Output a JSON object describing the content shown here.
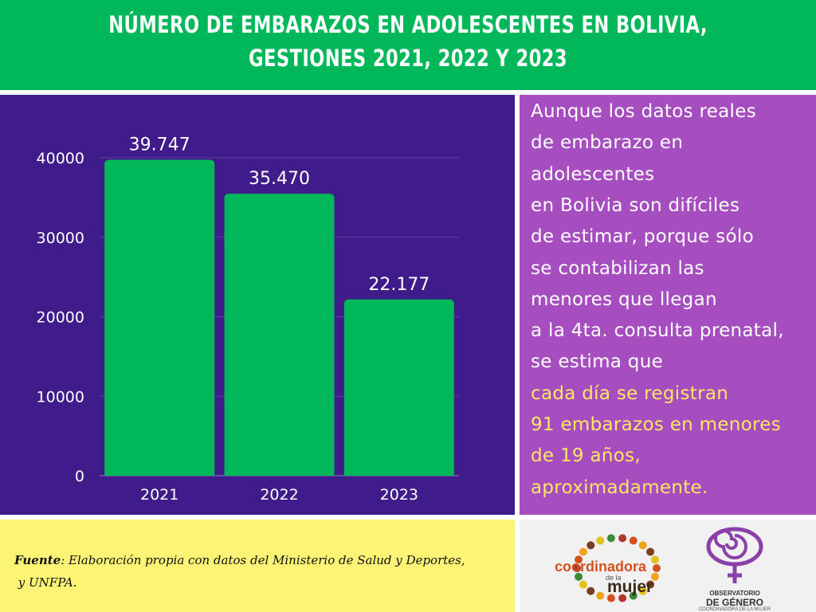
{
  "header": {
    "title_line1": "NÚMERO DE EMBARAZOS EN ADOLESCENTES EN BOLIVIA,",
    "title_line2": "GESTIONES 2021, 2022 Y 2023"
  },
  "chart_data": {
    "type": "bar",
    "categories": [
      "2021",
      "2022",
      "2023"
    ],
    "values": [
      39747,
      35470,
      22177
    ],
    "data_labels": [
      "39.747",
      "35.470",
      "22.177"
    ],
    "yticks": [
      0,
      10000,
      20000,
      30000,
      40000
    ],
    "ylim": [
      0,
      44000
    ],
    "grid": true,
    "bar_color": "#00b85a"
  },
  "note": {
    "lines": [
      "Aunque los datos reales",
      "de embarazo en",
      "adolescentes",
      "en Bolivia son difíciles",
      "de estimar, porque sólo",
      "se contabilizan las",
      "menores que llegan",
      "a la 4ta. consulta prenatal,",
      "se estima que"
    ],
    "highlight_lines": [
      "cada día se registran",
      "91 embarazos en menores",
      "de 19 años,",
      "aproximadamente."
    ],
    "highlight_color": "#ffe566"
  },
  "source": {
    "label": "Fuente",
    "text": ": Elaboración propia con datos del Ministerio de Salud y Deportes,",
    "text2": "y UNFPA."
  },
  "logos": {
    "coordinadora_word": "coordinadora",
    "coordinadora_dela": "de la",
    "coordinadora_mujer": "mujer",
    "observatorio_line1": "OBSERVATORIO",
    "observatorio_line2": "DE GÉNERO",
    "observatorio_line3": "COORDINADORA DE LA MUJER"
  },
  "colors": {
    "header_green": "#00b85a",
    "chart_bg": "#3f1c8a",
    "note_bg": "#a64ec0",
    "source_bg": "#fcf474"
  }
}
